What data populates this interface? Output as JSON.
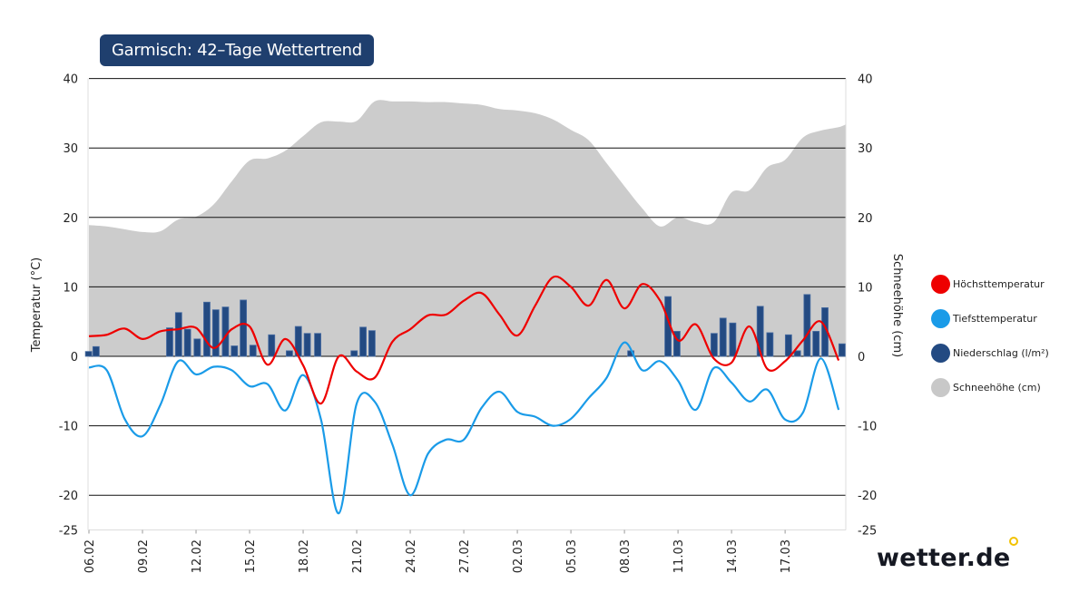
{
  "title": "Garmisch: 42–Tage Wettertrend",
  "logo": "wetter.de",
  "colors": {
    "max": "#ee0000",
    "min": "#1a9be8",
    "precip": "#234a82",
    "snow": "#cccccc",
    "title_bg": "#1f3f6e",
    "logo_dot": "#f2c200"
  },
  "legend": [
    {
      "label": "Höchsttemperatur",
      "color": "#ee0000"
    },
    {
      "label": "Tiefsttemperatur",
      "color": "#1a9be8"
    },
    {
      "label": "Niederschlag (l/m²)",
      "color": "#234a82"
    },
    {
      "label": "Schneehöhe (cm)",
      "color": "#c8c8c8"
    }
  ],
  "chart_data": {
    "type": "line",
    "ylabel": "Temperatur (°C)",
    "y2label": "Schneehöhe (cm)",
    "ylim": [
      -25,
      40
    ],
    "y2lim": [
      -25,
      40
    ],
    "yticks": [
      40,
      30,
      20,
      10,
      0,
      -10,
      -20,
      -25
    ],
    "y2ticks": [
      40,
      30,
      20,
      10,
      0,
      -10,
      -20,
      -25
    ],
    "xticks": [
      "06.02",
      "09.02",
      "12.02",
      "15.02",
      "18.02",
      "21.02",
      "24.02",
      "27.02",
      "02.03",
      "05.03",
      "08.03",
      "11.03",
      "14.03",
      "17.03"
    ],
    "grid": true,
    "legend_position": "right",
    "dates": [
      "06.02",
      "07.02",
      "08.02",
      "09.02",
      "10.02",
      "11.02",
      "12.02",
      "13.02",
      "14.02",
      "15.02",
      "16.02",
      "17.02",
      "18.02",
      "19.02",
      "20.02",
      "21.02",
      "22.02",
      "23.02",
      "24.02",
      "25.02",
      "26.02",
      "27.02",
      "28.02",
      "01.03",
      "02.03",
      "03.03",
      "04.03",
      "05.03",
      "06.03",
      "07.03",
      "08.03",
      "09.03",
      "10.03",
      "11.03",
      "12.03",
      "13.03",
      "14.03",
      "15.03",
      "16.03",
      "17.03",
      "18.03",
      "19.03",
      "20.03"
    ],
    "series": [
      {
        "name": "Höchsttemperatur",
        "kind": "line",
        "values": [
          2.9,
          3.1,
          4.0,
          2.5,
          3.6,
          3.9,
          4.1,
          1.2,
          3.9,
          4.3,
          -1.2,
          2.5,
          -1.3,
          -6.8,
          0.0,
          -2.2,
          -3.1,
          2.1,
          3.9,
          5.9,
          6.0,
          8.0,
          9.1,
          6.0,
          3.0,
          7.3,
          11.4,
          10.0,
          7.3,
          11.0,
          6.9,
          10.4,
          8.0,
          2.3,
          4.6,
          -0.3,
          -0.9,
          4.3,
          -1.8,
          -0.7,
          2.3,
          5.0,
          -0.6
        ]
      },
      {
        "name": "Tiefsttemperatur",
        "kind": "line",
        "values": [
          -1.6,
          -2.0,
          -9.0,
          -11.5,
          -7.0,
          -0.7,
          -2.6,
          -1.5,
          -2.0,
          -4.3,
          -4.0,
          -7.8,
          -2.7,
          -9.1,
          -22.6,
          -6.8,
          -6.5,
          -12.7,
          -20.0,
          -14.0,
          -12.0,
          -12.0,
          -7.4,
          -5.1,
          -8.0,
          -8.7,
          -10.0,
          -9.0,
          -6.0,
          -3.1,
          2.0,
          -2.0,
          -0.7,
          -3.5,
          -7.7,
          -1.7,
          -3.8,
          -6.5,
          -4.8,
          -9.1,
          -8.1,
          -0.3,
          -7.7
        ]
      },
      {
        "name": "Schneehöhe (cm)",
        "kind": "area",
        "values": [
          18.9,
          18.7,
          18.3,
          17.9,
          18.0,
          19.7,
          20.1,
          21.9,
          25.2,
          28.2,
          28.5,
          29.6,
          31.7,
          33.7,
          33.8,
          33.9,
          36.7,
          36.7,
          36.7,
          36.6,
          36.6,
          36.4,
          36.2,
          35.6,
          35.4,
          35.0,
          34.1,
          32.6,
          31.1,
          27.8,
          24.5,
          21.3,
          18.7,
          20.0,
          19.3,
          19.3,
          23.6,
          23.9,
          27.2,
          28.3,
          31.5,
          32.5,
          33.0
        ]
      },
      {
        "name": "Niederschlag (l/m²)",
        "kind": "bar",
        "points": [
          [
            "06.02 02:00",
            0.7
          ],
          [
            "06.02 12:00",
            1.4
          ],
          [
            "10.02 15:00",
            4.1
          ],
          [
            "11.02 03:00",
            6.3
          ],
          [
            "11.02 15:00",
            3.9
          ],
          [
            "12.02 04:00",
            2.5
          ],
          [
            "12.02 17:00",
            7.8
          ],
          [
            "13.02 05:00",
            6.7
          ],
          [
            "13.02 18:00",
            7.1
          ],
          [
            "14.02 06:00",
            1.5
          ],
          [
            "14.02 18:00",
            8.1
          ],
          [
            "15.02 07:00",
            1.6
          ],
          [
            "16.02 08:00",
            3.1
          ],
          [
            "17.02 08:00",
            0.8
          ],
          [
            "17.02 20:00",
            4.3
          ],
          [
            "18.02 08:00",
            3.3
          ],
          [
            "18.02 22:00",
            3.3
          ],
          [
            "20.02 23:00",
            0.8
          ],
          [
            "21.02 11:00",
            4.2
          ],
          [
            "21.02 23:00",
            3.7
          ],
          [
            "08.03 11:00",
            0.8
          ],
          [
            "10.03 13:00",
            8.6
          ],
          [
            "11.03 01:00",
            3.6
          ],
          [
            "13.03 03:00",
            3.3
          ],
          [
            "13.03 15:00",
            5.5
          ],
          [
            "14.03 04:00",
            4.8
          ],
          [
            "15.03 17:00",
            7.2
          ],
          [
            "16.03 06:00",
            3.4
          ],
          [
            "17.03 07:00",
            3.1
          ],
          [
            "17.03 19:00",
            0.8
          ],
          [
            "18.03 08:00",
            8.9
          ],
          [
            "18.03 20:00",
            3.6
          ],
          [
            "19.03 08:00",
            7.0
          ],
          [
            "20.03 07:00",
            1.8
          ]
        ]
      }
    ]
  }
}
